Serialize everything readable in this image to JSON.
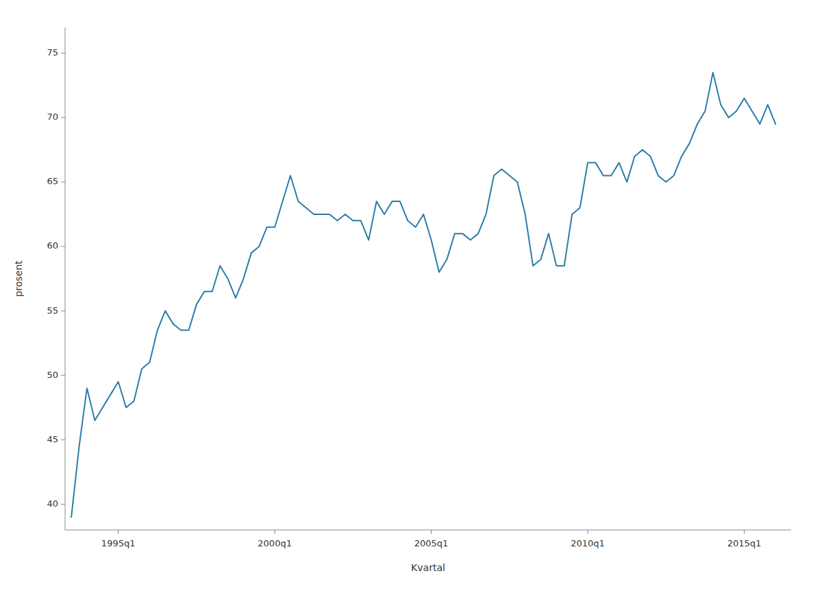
{
  "chart_data": {
    "type": "line",
    "x_label": "Kvartal",
    "y_label": "prosent",
    "color": "#2a7ca8",
    "grid": false,
    "xlim": [
      1993.3,
      2016.5
    ],
    "xticks": [
      {
        "value": 1995.0,
        "label": "1995q1"
      },
      {
        "value": 2000.0,
        "label": "2000q1"
      },
      {
        "value": 2005.0,
        "label": "2005q1"
      },
      {
        "value": 2010.0,
        "label": "2010q1"
      },
      {
        "value": 2015.0,
        "label": "2015q1"
      }
    ],
    "ylim": [
      38,
      77
    ],
    "yticks": [
      40,
      45,
      50,
      55,
      60,
      65,
      70,
      75
    ],
    "x": [
      1993.5,
      1993.75,
      1994.0,
      1994.25,
      1994.5,
      1994.75,
      1995.0,
      1995.25,
      1995.5,
      1995.75,
      1996.0,
      1996.25,
      1996.5,
      1996.75,
      1997.0,
      1997.25,
      1997.5,
      1997.75,
      1998.0,
      1998.25,
      1998.5,
      1998.75,
      1999.0,
      1999.25,
      1999.5,
      1999.75,
      2000.0,
      2000.25,
      2000.5,
      2000.75,
      2001.0,
      2001.25,
      2001.5,
      2001.75,
      2002.0,
      2002.25,
      2002.5,
      2002.75,
      2003.0,
      2003.25,
      2003.5,
      2003.75,
      2004.0,
      2004.25,
      2004.5,
      2004.75,
      2005.0,
      2005.25,
      2005.5,
      2005.75,
      2006.0,
      2006.25,
      2006.5,
      2006.75,
      2007.0,
      2007.25,
      2007.5,
      2007.75,
      2008.0,
      2008.25,
      2008.5,
      2008.75,
      2009.0,
      2009.25,
      2009.5,
      2009.75,
      2010.0,
      2010.25,
      2010.5,
      2010.75,
      2011.0,
      2011.25,
      2011.5,
      2011.75,
      2012.0,
      2012.25,
      2012.5,
      2012.75,
      2013.0,
      2013.25,
      2013.5,
      2013.75,
      2014.0,
      2014.25,
      2014.5,
      2014.75,
      2015.0,
      2015.25,
      2015.5,
      2015.75,
      2016.0
    ],
    "values": [
      39.0,
      44.5,
      49.0,
      46.5,
      47.5,
      48.5,
      49.5,
      47.5,
      48.0,
      50.5,
      51.0,
      53.5,
      55.0,
      54.0,
      53.5,
      53.5,
      55.5,
      56.5,
      56.5,
      58.5,
      57.5,
      56.0,
      57.5,
      59.5,
      60.0,
      61.5,
      61.5,
      63.5,
      65.5,
      63.5,
      63.0,
      62.5,
      62.5,
      62.5,
      62.0,
      62.5,
      62.0,
      62.0,
      60.5,
      63.5,
      62.5,
      63.5,
      63.5,
      62.0,
      61.5,
      62.5,
      60.5,
      58.0,
      59.0,
      61.0,
      61.0,
      60.5,
      61.0,
      62.5,
      65.5,
      66.0,
      65.5,
      65.0,
      62.5,
      58.5,
      59.0,
      61.0,
      58.5,
      58.5,
      62.5,
      63.0,
      66.5,
      66.5,
      65.5,
      65.5,
      66.5,
      65.0,
      67.0,
      67.5,
      67.0,
      65.5,
      65.0,
      65.5,
      67.0,
      68.0,
      69.5,
      70.5,
      73.5,
      71.0,
      70.0,
      70.5,
      71.5,
      70.5,
      69.5,
      71.0,
      69.5
    ]
  }
}
